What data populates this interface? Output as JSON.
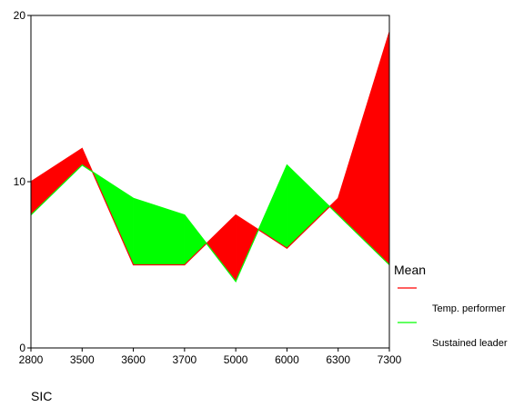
{
  "chart_data": {
    "type": "area",
    "title": "",
    "xlabel": "SIC",
    "ylabel": "",
    "categories": [
      "2800",
      "3500",
      "3600",
      "3700",
      "5000",
      "6000",
      "6300",
      "7300"
    ],
    "ylim": [
      0,
      20
    ],
    "yticks": [
      0,
      10,
      20
    ],
    "series": [
      {
        "name": "Temp. performer",
        "values": [
          10,
          12,
          5,
          5,
          8,
          6,
          9,
          19
        ],
        "color": "#ff0000"
      },
      {
        "name": "Sustained leader",
        "values": [
          8,
          11,
          9,
          8,
          4,
          11,
          8,
          5
        ],
        "color": "#00ff00"
      }
    ],
    "fill_between": true,
    "grid": false,
    "legend": {
      "title": "Mean",
      "placement": "right"
    }
  }
}
